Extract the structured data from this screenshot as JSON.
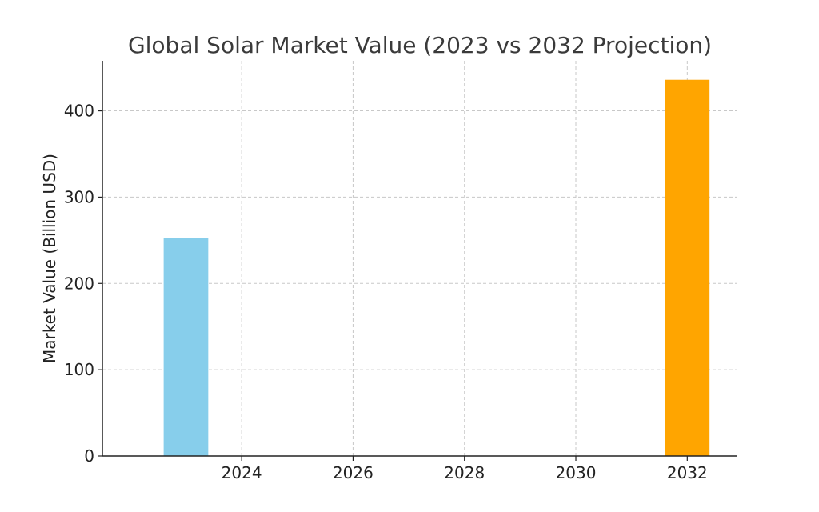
{
  "chart_data": {
    "type": "bar",
    "title": "Global Solar Market Value (2023 vs 2032 Projection)",
    "xlabel": "",
    "ylabel": "Market Value (Billion USD)",
    "x": [
      2023,
      2032
    ],
    "values": [
      253,
      436
    ],
    "colors": [
      "#87CEEB",
      "#FFA500"
    ],
    "bar_width_years": 0.8,
    "xlim": [
      2021.5,
      2032.9
    ],
    "ylim": [
      0,
      458
    ],
    "xticks": [
      2024,
      2026,
      2028,
      2030,
      2032
    ],
    "yticks": [
      0,
      100,
      200,
      300,
      400
    ],
    "grid": true
  }
}
